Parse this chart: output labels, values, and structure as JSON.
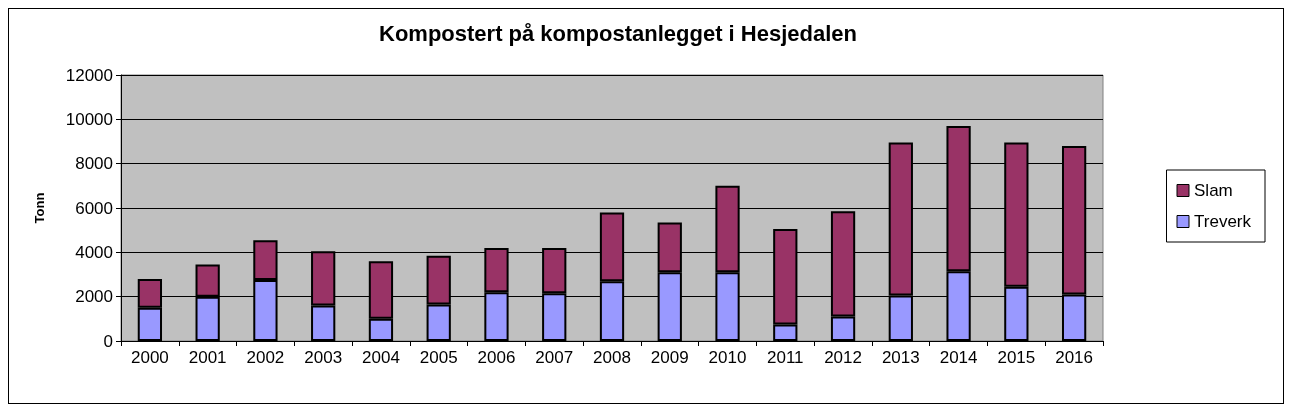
{
  "chart_data": {
    "type": "bar",
    "title": "Kompostert på kompostanlegget i Hesjedalen",
    "ylabel": "Tonn",
    "stacked": true,
    "categories": [
      "2000",
      "2001",
      "2002",
      "2003",
      "2004",
      "2005",
      "2006",
      "2007",
      "2008",
      "2009",
      "2010",
      "2011",
      "2012",
      "2013",
      "2014",
      "2015",
      "2016"
    ],
    "series": [
      {
        "name": "Treverk",
        "color": "#9999ff",
        "values": [
          1500,
          2000,
          2750,
          1600,
          1000,
          1650,
          2200,
          2150,
          2700,
          3100,
          3100,
          750,
          1100,
          2050,
          3150,
          2450,
          2100
        ]
      },
      {
        "name": "Slam",
        "color": "#993366",
        "values": [
          1300,
          1450,
          1800,
          2450,
          2600,
          2200,
          2000,
          2050,
          3100,
          2250,
          3900,
          4300,
          4750,
          6900,
          6550,
          6500,
          6700
        ]
      }
    ],
    "ylim": [
      0,
      12000
    ],
    "yticks": [
      0,
      2000,
      4000,
      6000,
      8000,
      10000,
      12000
    ],
    "grid": "y",
    "legend": "right"
  }
}
